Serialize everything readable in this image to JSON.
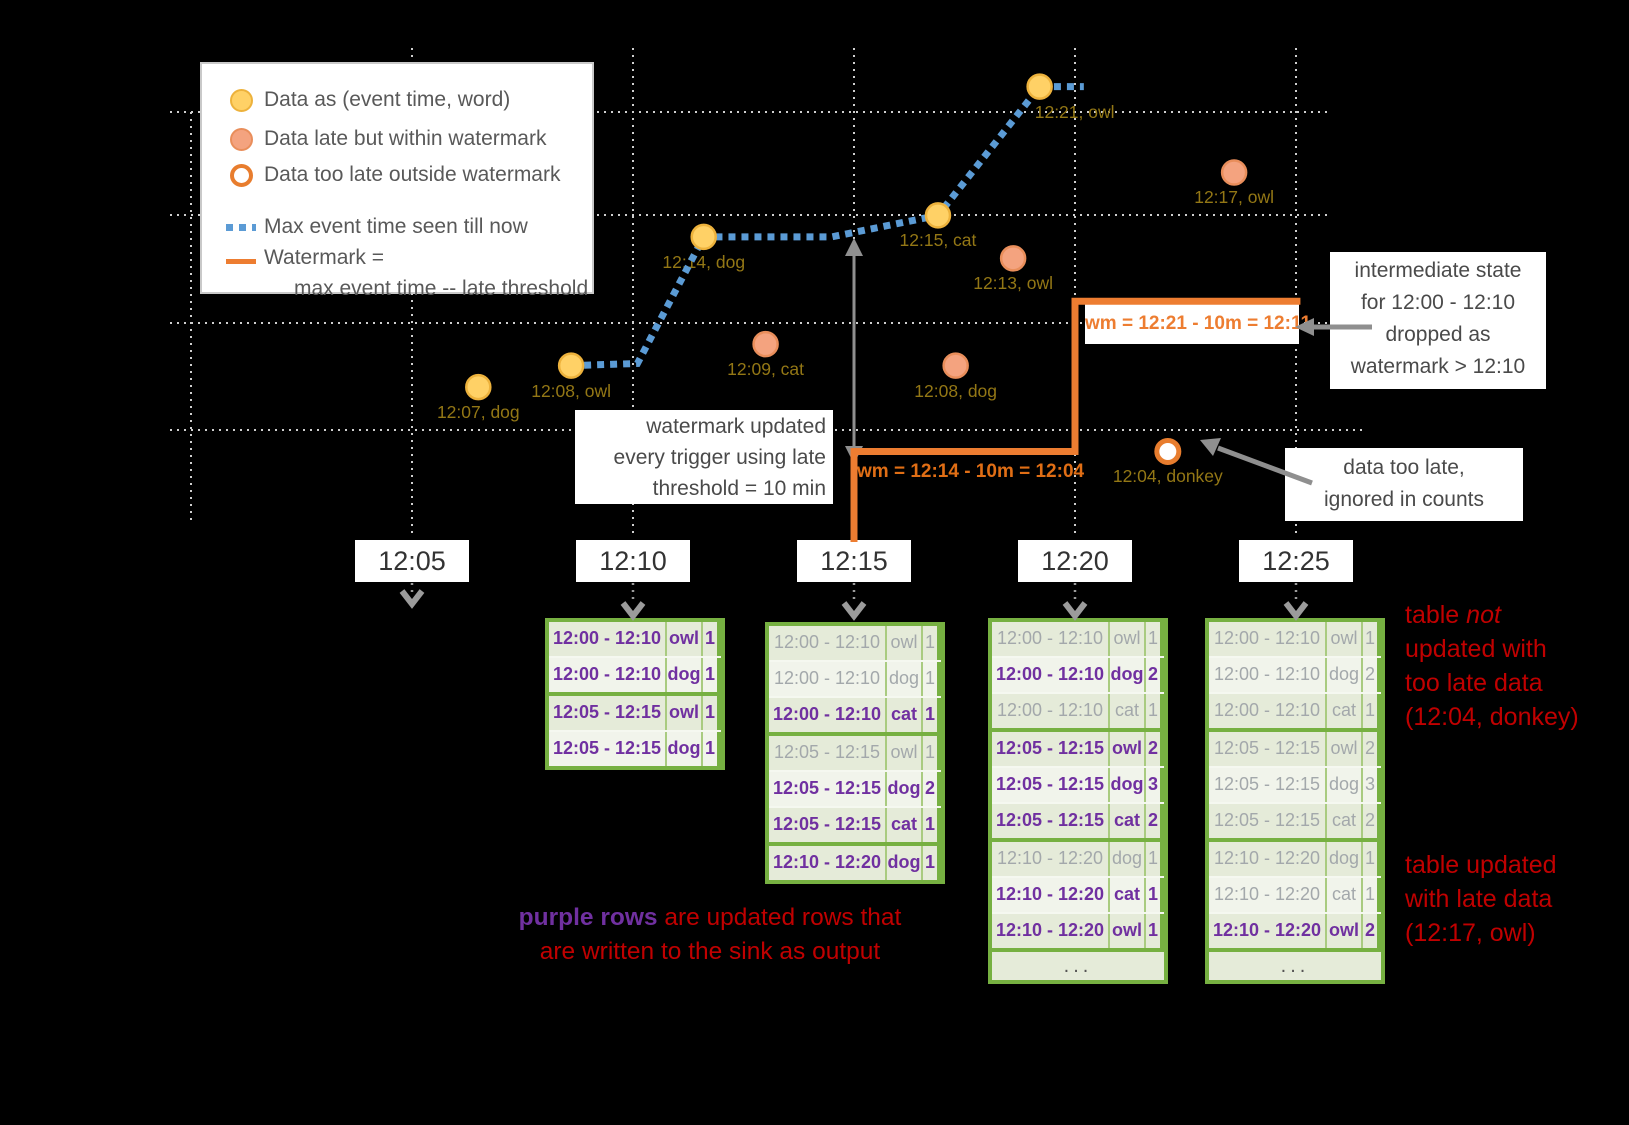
{
  "legend": {
    "items": [
      {
        "icon": "ontime-dot-icon",
        "label": "Data as (event time, word)"
      },
      {
        "icon": "late-dot-icon",
        "label": "Data late but within watermark"
      },
      {
        "icon": "toolate-dot-icon",
        "label": "Data too late outside watermark"
      },
      {
        "icon": "max-event-time-line-icon",
        "label": "Max event time seen till now"
      },
      {
        "icon": "watermark-line-icon",
        "label": "Watermark =",
        "label2": "max event time -- late threshold"
      }
    ]
  },
  "x_axis": {
    "trigger_labels": [
      "12:05",
      "12:10",
      "12:15",
      "12:20",
      "12:25"
    ]
  },
  "chart_data": {
    "type": "scatter",
    "x_unit": "processing time (minutes after 12:00)",
    "y_unit": "event time (minutes after 12:00)",
    "points": [
      {
        "label": "12:07, dog",
        "kind": "on-time",
        "proc_min": 6.5,
        "event_min": 7
      },
      {
        "label": "12:08, owl",
        "kind": "on-time",
        "proc_min": 8.6,
        "event_min": 8
      },
      {
        "label": "12:14, dog",
        "kind": "on-time",
        "proc_min": 11.6,
        "event_min": 14
      },
      {
        "label": "12:09, cat",
        "kind": "late-within-watermark",
        "proc_min": 13.0,
        "event_min": 9
      },
      {
        "label": "12:15, cat",
        "kind": "on-time",
        "proc_min": 16.9,
        "event_min": 15
      },
      {
        "label": "12:08, dog",
        "kind": "late-within-watermark",
        "proc_min": 17.3,
        "event_min": 8
      },
      {
        "label": "12:13, owl",
        "kind": "late-within-watermark",
        "proc_min": 18.6,
        "event_min": 13
      },
      {
        "label": "12:21, owl",
        "kind": "on-time",
        "proc_min": 19.2,
        "event_min": 21,
        "label_dx": 35
      },
      {
        "label": "12:04, donkey",
        "kind": "too-late-outside-watermark",
        "proc_min": 22.1,
        "event_min": 4
      },
      {
        "label": "12:17, owl",
        "kind": "late-within-watermark",
        "proc_min": 23.6,
        "event_min": 17
      }
    ],
    "max_event_time_path": [
      [
        8.6,
        8
      ],
      [
        10.1,
        8.1
      ],
      [
        11.6,
        14
      ],
      [
        14.5,
        14
      ],
      [
        16.9,
        15
      ],
      [
        19.2,
        21
      ],
      [
        20.2,
        21
      ]
    ],
    "watermark_steps": [
      {
        "wm": "12:04",
        "wm_event": 4,
        "until_proc": 20
      },
      {
        "wm": "12:11",
        "wm_event": 11,
        "until_proc": 25.1
      }
    ]
  },
  "annotations": {
    "wm_label_1": "wm = 12:14 - 10m = 12:04",
    "wm_label_2": "wm = 12:21 - 10m = 12:11",
    "watermark_update_note": {
      "lines": [
        "watermark updated",
        "every trigger using late",
        "threshold = 10 min"
      ]
    },
    "intermediate_state_note": {
      "lines": [
        "intermediate state",
        "for 12:00 - 12:10",
        "dropped as",
        "watermark > 12:10"
      ]
    },
    "too_late_note": {
      "lines": [
        "data too late,",
        "ignored in counts"
      ]
    },
    "not_updated_note": {
      "line1_prefix": "table ",
      "line1_emphasis": "not",
      "lines": [
        "updated with",
        "too late data",
        "(12:04, donkey)"
      ]
    },
    "updated_note": {
      "lines": [
        "table updated",
        "with late data",
        "(12:17, owl)"
      ]
    },
    "purple_rows_note": {
      "highlight": "purple rows",
      "line1_rest": " are updated rows that",
      "line2": "are written to the sink as output"
    }
  },
  "ellipsis_label": "...",
  "tables": [
    {
      "trigger": "12:10",
      "ellipsis": false,
      "rows": [
        {
          "window": "12:00 - 12:10",
          "word": "owl",
          "count": "1",
          "updated": true,
          "group": 0
        },
        {
          "window": "12:00 - 12:10",
          "word": "dog",
          "count": "1",
          "updated": true,
          "group": 0
        },
        {
          "window": "12:05 - 12:15",
          "word": "owl",
          "count": "1",
          "updated": true,
          "group": 1
        },
        {
          "window": "12:05 - 12:15",
          "word": "dog",
          "count": "1",
          "updated": true,
          "group": 1
        }
      ]
    },
    {
      "trigger": "12:15",
      "ellipsis": false,
      "rows": [
        {
          "window": "12:00 - 12:10",
          "word": "owl",
          "count": "1",
          "updated": false,
          "group": 0
        },
        {
          "window": "12:00 - 12:10",
          "word": "dog",
          "count": "1",
          "updated": false,
          "group": 0
        },
        {
          "window": "12:00 - 12:10",
          "word": "cat",
          "count": "1",
          "updated": true,
          "group": 0
        },
        {
          "window": "12:05 - 12:15",
          "word": "owl",
          "count": "1",
          "updated": false,
          "group": 1
        },
        {
          "window": "12:05 - 12:15",
          "word": "dog",
          "count": "2",
          "updated": true,
          "group": 1
        },
        {
          "window": "12:05 - 12:15",
          "word": "cat",
          "count": "1",
          "updated": true,
          "group": 1
        },
        {
          "window": "12:10 - 12:20",
          "word": "dog",
          "count": "1",
          "updated": true,
          "group": 2
        }
      ]
    },
    {
      "trigger": "12:20",
      "ellipsis": true,
      "rows": [
        {
          "window": "12:00 - 12:10",
          "word": "owl",
          "count": "1",
          "updated": false,
          "group": 0
        },
        {
          "window": "12:00 - 12:10",
          "word": "dog",
          "count": "2",
          "updated": true,
          "group": 0
        },
        {
          "window": "12:00 - 12:10",
          "word": "cat",
          "count": "1",
          "updated": false,
          "group": 0
        },
        {
          "window": "12:05 - 12:15",
          "word": "owl",
          "count": "2",
          "updated": true,
          "group": 1
        },
        {
          "window": "12:05 - 12:15",
          "word": "dog",
          "count": "3",
          "updated": true,
          "group": 1
        },
        {
          "window": "12:05 - 12:15",
          "word": "cat",
          "count": "2",
          "updated": true,
          "group": 1
        },
        {
          "window": "12:10 - 12:20",
          "word": "dog",
          "count": "1",
          "updated": false,
          "group": 2
        },
        {
          "window": "12:10 - 12:20",
          "word": "cat",
          "count": "1",
          "updated": true,
          "group": 2
        },
        {
          "window": "12:10 - 12:20",
          "word": "owl",
          "count": "1",
          "updated": true,
          "group": 2
        }
      ]
    },
    {
      "trigger": "12:25",
      "ellipsis": true,
      "rows": [
        {
          "window": "12:00 - 12:10",
          "word": "owl",
          "count": "1",
          "updated": false,
          "group": 0
        },
        {
          "window": "12:00 - 12:10",
          "word": "dog",
          "count": "2",
          "updated": false,
          "group": 0
        },
        {
          "window": "12:00 - 12:10",
          "word": "cat",
          "count": "1",
          "updated": false,
          "group": 0
        },
        {
          "window": "12:05 - 12:15",
          "word": "owl",
          "count": "2",
          "updated": false,
          "group": 1
        },
        {
          "window": "12:05 - 12:15",
          "word": "dog",
          "count": "3",
          "updated": false,
          "group": 1
        },
        {
          "window": "12:05 - 12:15",
          "word": "cat",
          "count": "2",
          "updated": false,
          "group": 1
        },
        {
          "window": "12:10 - 12:20",
          "word": "dog",
          "count": "1",
          "updated": false,
          "group": 2
        },
        {
          "window": "12:10 - 12:20",
          "word": "cat",
          "count": "1",
          "updated": false,
          "group": 2
        },
        {
          "window": "12:10 - 12:20",
          "word": "owl",
          "count": "2",
          "updated": true,
          "group": 2
        }
      ]
    }
  ],
  "colors": {
    "on_time_fill": "#FFD166",
    "late_within_fill": "#F4A37F",
    "too_late_ring": "#E87D2E",
    "max_event_line": "#5B9BD5",
    "watermark_line": "#ED7D31",
    "table_green": "#76B041",
    "updated_purple": "#7030A0",
    "note_red": "#C00000",
    "point_label": "#937715"
  }
}
